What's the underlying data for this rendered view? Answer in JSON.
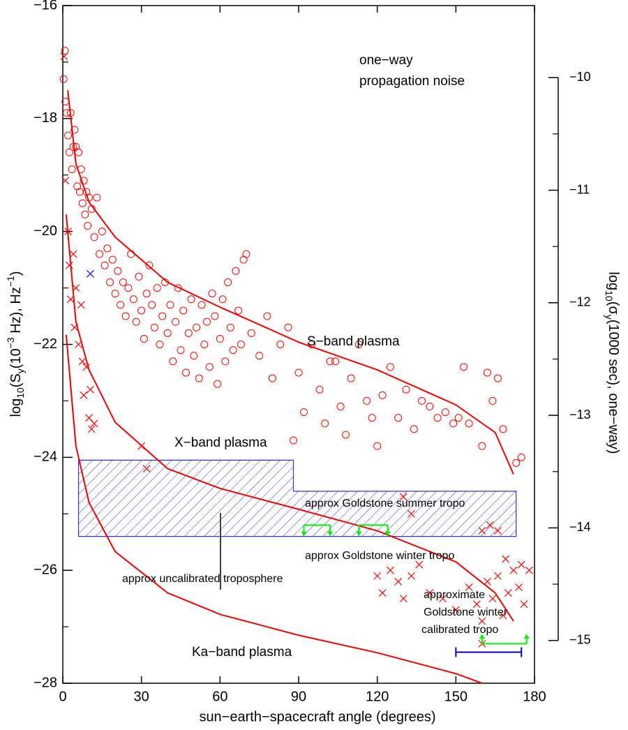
{
  "chart_data": {
    "type": "scatter",
    "xlabel": "sun−earth−spacecraft angle (degrees)",
    "ylabel": [
      "log",
      "10",
      "(S",
      "y",
      "(10",
      "−3",
      " Hz), Hz",
      "−1",
      ")"
    ],
    "y2label": [
      "log",
      "10",
      "(σ",
      "y",
      "(1000 sec), one−way)"
    ],
    "xlim": [
      0,
      180
    ],
    "xticks": [
      0,
      30,
      60,
      90,
      120,
      150,
      180
    ],
    "ylim": [
      -28,
      -16
    ],
    "yticks": [
      {
        "value": -16,
        "label": "−16"
      },
      {
        "value": -18,
        "label": "−18"
      },
      {
        "value": -20,
        "label": "−20"
      },
      {
        "value": -22,
        "label": "−22"
      },
      {
        "value": -24,
        "label": "−24"
      },
      {
        "value": -26,
        "label": "−26"
      },
      {
        "value": -28,
        "label": "−28"
      }
    ],
    "yticks_minor": [
      -17,
      -19,
      -21,
      -23,
      -25,
      -27
    ],
    "y2lim": [
      -15.38,
      -9.36
    ],
    "y2ticks": [
      {
        "value": -10,
        "label": "−10"
      },
      {
        "value": -11,
        "label": "−11"
      },
      {
        "value": -12,
        "label": "−12"
      },
      {
        "value": -13,
        "label": "−13"
      },
      {
        "value": -14,
        "label": "−14"
      },
      {
        "value": -15,
        "label": "−15"
      }
    ],
    "y2ticks_minor": [
      -10.5,
      -11.5,
      -12.5,
      -13.5,
      -14.5
    ],
    "series": [
      {
        "marker": "circle",
        "color": "#ff0000",
        "x": [
          0.3,
          0.8,
          1,
          1.5,
          2,
          2.5,
          3,
          3.5,
          4,
          4.5,
          5,
          5.5,
          6,
          6.5,
          7,
          7.5,
          8,
          8.5,
          9,
          9.5,
          10,
          11,
          12,
          13,
          14,
          15,
          16,
          17,
          18,
          19,
          20,
          21,
          22,
          23,
          24,
          25,
          26,
          27,
          28,
          29,
          30,
          31,
          32,
          33,
          34,
          35,
          36,
          37,
          38,
          39,
          40,
          41,
          42,
          43,
          44,
          45,
          46,
          47,
          48,
          49,
          50,
          51,
          52,
          53,
          54,
          55,
          56,
          57,
          58,
          59,
          60,
          61,
          62,
          63,
          64,
          65,
          66,
          67,
          68,
          69,
          70,
          72,
          75,
          78,
          80,
          83,
          86,
          88,
          90,
          92,
          95,
          98,
          100,
          102,
          104,
          106,
          108,
          110,
          113,
          116,
          118,
          120,
          122,
          125,
          128,
          131,
          134,
          137,
          140,
          143,
          146,
          149,
          151,
          153,
          155,
          160,
          162,
          164,
          166,
          168,
          173,
          175
        ],
        "values": [
          -17.3,
          -16.8,
          -17.7,
          -17.9,
          -18.3,
          -18.6,
          -17.9,
          -18.9,
          -18.5,
          -18.2,
          -18.5,
          -19.2,
          -18.6,
          -19.3,
          -18.9,
          -19.5,
          -19.1,
          -19.7,
          -19.3,
          -19.9,
          -19.4,
          -19.6,
          -20.1,
          -19.4,
          -20.4,
          -20.0,
          -20.6,
          -20.3,
          -20.9,
          -20.5,
          -21.1,
          -20.7,
          -21.3,
          -20.9,
          -21.5,
          -21.0,
          -20.4,
          -21.2,
          -21.6,
          -20.8,
          -21.4,
          -21.9,
          -21.1,
          -20.6,
          -21.3,
          -21.7,
          -21.0,
          -22.0,
          -21.5,
          -20.9,
          -21.8,
          -21.3,
          -22.3,
          -21.6,
          -21.0,
          -22.1,
          -21.4,
          -22.5,
          -21.8,
          -21.2,
          -22.2,
          -21.7,
          -22.6,
          -21.3,
          -22.0,
          -21.6,
          -22.4,
          -21.1,
          -21.5,
          -22.7,
          -21.9,
          -21.2,
          -22.3,
          -20.9,
          -21.7,
          -22.1,
          -20.7,
          -21.4,
          -22.0,
          -20.5,
          -20.4,
          -21.8,
          -22.2,
          -21.5,
          -22.6,
          -22.0,
          -21.7,
          -23.7,
          -22.5,
          -23.2,
          -22.0,
          -22.8,
          -23.4,
          -22.3,
          -22.3,
          -23.1,
          -23.6,
          -22.6,
          -22.0,
          -23.0,
          -23.3,
          -23.8,
          -22.9,
          -22.4,
          -23.3,
          -22.8,
          -23.5,
          -23.0,
          -23.1,
          -23.3,
          -23.2,
          -23.4,
          -23.3,
          -22.4,
          -23.4,
          -23.8,
          -22.5,
          -23.0,
          -22.6,
          -23.5,
          -24.1,
          -24.0
        ]
      },
      {
        "marker": "cross",
        "color": "#ff0000",
        "x": [
          0.5,
          1,
          2,
          2.5,
          3,
          4,
          4.5,
          5,
          6,
          7,
          7.5,
          8,
          9,
          10,
          10.5,
          11,
          12,
          30,
          32,
          130,
          133,
          160,
          163,
          166,
          120,
          122,
          125,
          128,
          130,
          133,
          136,
          140,
          145,
          150,
          155,
          158,
          160,
          162,
          164,
          166,
          168,
          170,
          172,
          174,
          176,
          178,
          169,
          175,
          160
        ],
        "values": [
          -16.9,
          -19.1,
          -20.0,
          -20.6,
          -21.2,
          -20.4,
          -21.7,
          -21.0,
          -22.0,
          -21.3,
          -22.3,
          -22.9,
          -22.4,
          -23.3,
          -22.8,
          -23.5,
          -23.4,
          -23.8,
          -24.2,
          -24.7,
          -25.0,
          -25.3,
          -25.2,
          -25.3,
          -26.1,
          -26.4,
          -26.0,
          -26.2,
          -26.5,
          -26.1,
          -25.9,
          -26.4,
          -26.5,
          -26.7,
          -26.3,
          -26.6,
          -26.9,
          -26.2,
          -26.5,
          -26.1,
          -26.8,
          -26.4,
          -26.0,
          -26.3,
          -26.6,
          -26.0,
          -25.8,
          -25.9,
          -27.3
        ]
      },
      {
        "marker": "cross",
        "color": "#0000ff",
        "x": [
          10.5
        ],
        "values": [
          -20.75
        ]
      }
    ],
    "curves": [
      {
        "color": "#ee0000",
        "x": [
          1.9,
          5,
          10,
          20,
          40,
          60,
          90,
          120,
          150,
          165,
          172
        ],
        "values": [
          -17.5,
          -18.8,
          -19.48,
          -20.1,
          -20.9,
          -21.34,
          -21.96,
          -22.45,
          -23.07,
          -23.56,
          -24.3
        ]
      },
      {
        "color": "#ee0000",
        "x": [
          1.3,
          5,
          10,
          20,
          40,
          60,
          90,
          120,
          150,
          165,
          172
        ],
        "values": [
          -19.7,
          -21.6,
          -22.45,
          -23.38,
          -24.2,
          -24.55,
          -24.92,
          -25.3,
          -25.85,
          -26.4,
          -26.9
        ]
      },
      {
        "color": "#ee0000",
        "x": [
          1.3,
          5,
          10,
          20,
          40,
          60,
          90,
          120,
          150,
          160
        ],
        "values": [
          -21.83,
          -23.8,
          -24.8,
          -25.67,
          -26.4,
          -26.78,
          -27.15,
          -27.46,
          -27.83,
          -28
        ]
      }
    ],
    "region": {
      "color": "#3333cc",
      "x": [
        6,
        6,
        88,
        88,
        173,
        173
      ],
      "values": [
        -25.4,
        -24.05,
        -24.05,
        -24.6,
        -24.6,
        -25.4
      ]
    },
    "markers": [
      {
        "color": "#00ee00",
        "ends": "down",
        "x": [
          92,
          102
        ],
        "values": [
          -25.2,
          -25.2
        ]
      },
      {
        "color": "#00ee00",
        "ends": "down",
        "x": [
          113,
          124
        ],
        "values": [
          -25.2,
          -25.2
        ]
      },
      {
        "color": "#00ee00",
        "ends": "up",
        "x": [
          160,
          177
        ],
        "values": [
          -27.3,
          -27.3
        ]
      },
      {
        "color": "#0000cc",
        "ends": "caps",
        "x": [
          150,
          175
        ],
        "values": [
          -27.45,
          -27.45
        ]
      }
    ],
    "annotations": [
      "one−way",
      "propagation noise",
      "S−band plasma",
      "X−band plasma",
      "Ka−band plasma",
      "approx Goldstone summer tropo",
      "approx Goldstone winter tropo",
      "approx uncalibrated troposphere",
      "approximate",
      "Goldstone winter",
      "calibrated tropo"
    ]
  }
}
